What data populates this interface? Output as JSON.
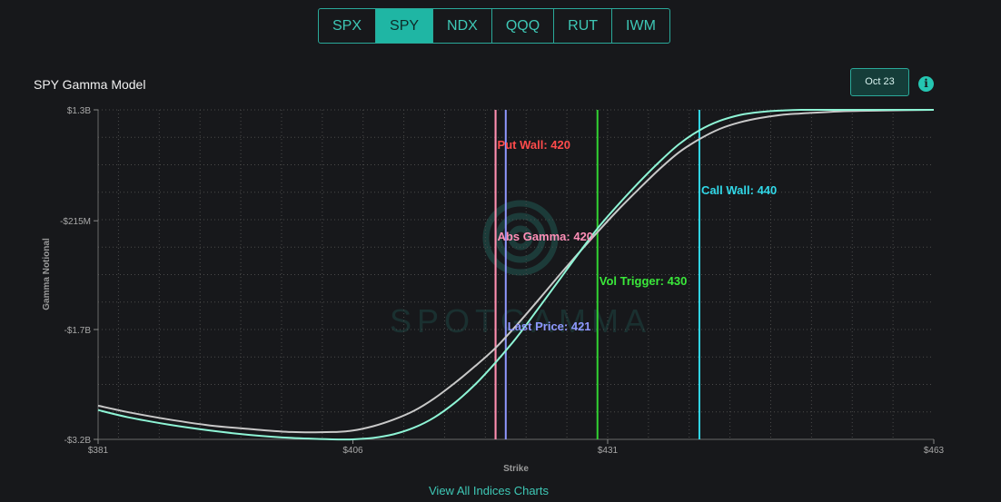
{
  "tabs": [
    "SPX",
    "SPY",
    "NDX",
    "QQQ",
    "RUT",
    "IWM"
  ],
  "active_tab": "SPY",
  "date_button": "Oct 23",
  "info_icon": "info-icon",
  "footer_link": "View All Indices Charts",
  "watermark": "SPOTGAMMA",
  "chart_data": {
    "type": "line",
    "title": "SPY Gamma Model",
    "xlabel": "Strike",
    "ylabel": "Gamma Notional",
    "xlim": [
      381,
      463
    ],
    "ylim": [
      -3.2,
      1.3
    ],
    "x_ticks": [
      381,
      406,
      431,
      463
    ],
    "x_tick_labels": [
      "$381",
      "$406",
      "$431",
      "$463"
    ],
    "y_ticks": [
      1.3,
      -0.215,
      -1.7,
      -3.2
    ],
    "y_tick_labels": [
      "$1.3B",
      "-$215M",
      "-$1.7B",
      "-$3.2B"
    ],
    "grid": true,
    "colors": {
      "teal": "#8ef5d6",
      "gray": "#c8c8c8"
    },
    "series": [
      {
        "color": "#8ef5d6",
        "x": [
          381,
          384,
          388,
          392,
          396,
          400,
          404,
          406,
          408,
          410,
          412,
          414,
          416,
          418,
          420,
          422,
          424,
          426,
          428,
          430,
          432,
          434,
          436,
          438,
          440,
          442,
          444,
          446,
          448,
          450,
          454,
          458,
          463
        ],
        "y": [
          -2.8,
          -2.9,
          -3.0,
          -3.08,
          -3.14,
          -3.18,
          -3.2,
          -3.2,
          -3.18,
          -3.13,
          -3.04,
          -2.9,
          -2.7,
          -2.45,
          -2.15,
          -1.82,
          -1.45,
          -1.07,
          -0.69,
          -0.32,
          0.0,
          0.3,
          0.58,
          0.83,
          1.02,
          1.15,
          1.23,
          1.27,
          1.29,
          1.3,
          1.3,
          1.3,
          1.3
        ]
      },
      {
        "color": "#c8c8c8",
        "x": [
          381,
          384,
          388,
          392,
          396,
          400,
          404,
          406,
          408,
          410,
          412,
          414,
          416,
          418,
          420,
          422,
          424,
          426,
          428,
          430,
          432,
          434,
          436,
          438,
          440,
          442,
          444,
          446,
          448,
          450,
          454,
          458,
          463
        ],
        "y": [
          -2.74,
          -2.83,
          -2.93,
          -3.01,
          -3.06,
          -3.1,
          -3.1,
          -3.08,
          -3.02,
          -2.93,
          -2.81,
          -2.64,
          -2.43,
          -2.2,
          -1.95,
          -1.65,
          -1.33,
          -1.0,
          -0.68,
          -0.37,
          -0.07,
          0.21,
          0.48,
          0.72,
          0.9,
          1.04,
          1.13,
          1.19,
          1.23,
          1.25,
          1.28,
          1.29,
          1.3
        ]
      }
    ],
    "vlines": [
      {
        "x": 420,
        "label": "Put Wall: 420",
        "color": "#ff4b4b",
        "line_color": "#ff8fb0"
      },
      {
        "x": 420,
        "label": "Abs Gamma: 420",
        "color": "#ff8fb8",
        "line_color": "#ff8fb0"
      },
      {
        "x": 421,
        "label": "Last Price: 421",
        "color": "#8f98ff",
        "line_color": "#8f98ff"
      },
      {
        "x": 430,
        "label": "Vol Trigger: 430",
        "color": "#3ae83a",
        "line_color": "#32d232"
      },
      {
        "x": 440,
        "label": "Call Wall: 440",
        "color": "#31d8e8",
        "line_color": "#31d8e8"
      }
    ]
  }
}
